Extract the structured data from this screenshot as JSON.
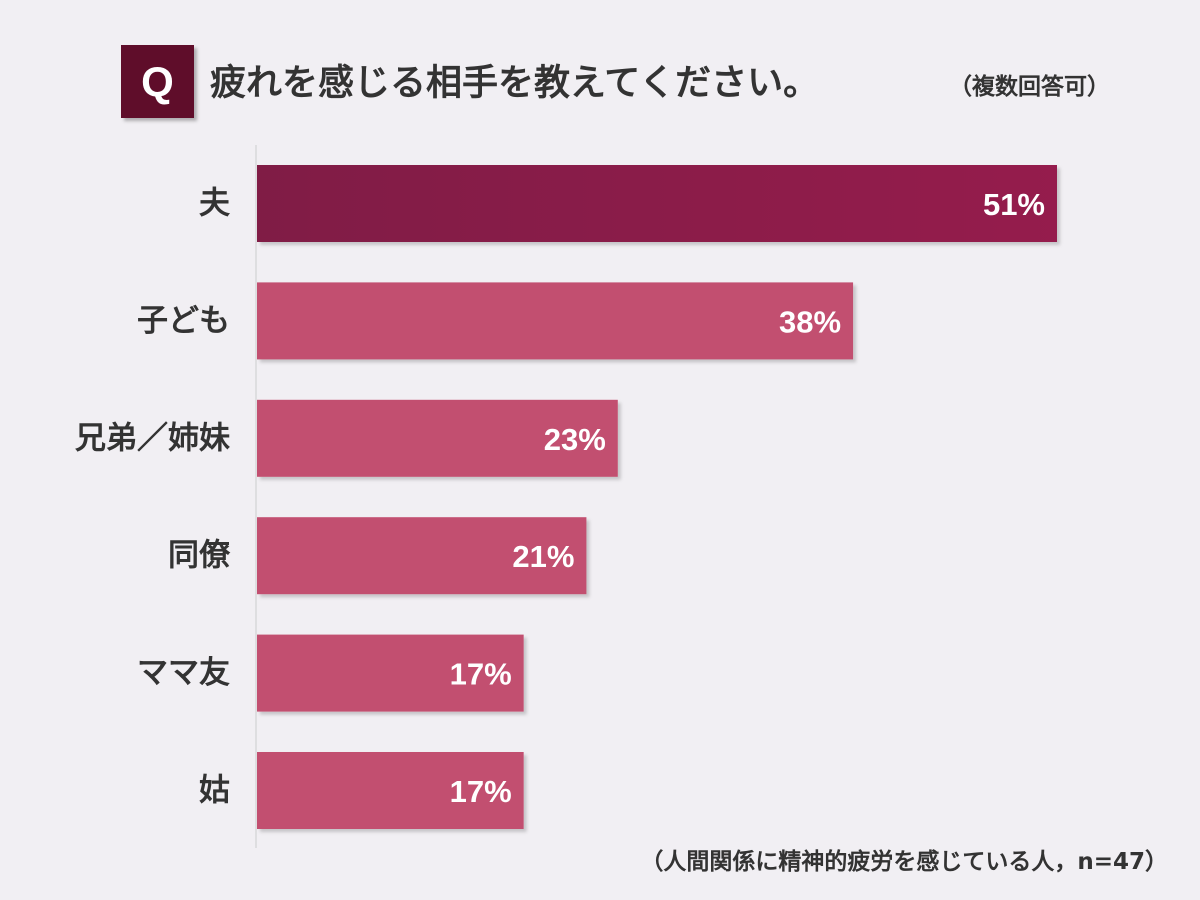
{
  "chart_data": {
    "type": "bar",
    "orientation": "horizontal",
    "question_badge": "Q",
    "title": "疲れを感じる相手を教えてください。",
    "title_note": "（複数回答可）",
    "categories": [
      "夫",
      "子ども",
      "兄弟／姉妹",
      "同僚",
      "ママ友",
      "姑"
    ],
    "values": [
      51,
      38,
      23,
      21,
      17,
      17
    ],
    "value_labels": [
      "51%",
      "38%",
      "23%",
      "21%",
      "17%",
      "17%"
    ],
    "unit": "%",
    "xlim": [
      0,
      100
    ],
    "grid": false,
    "legend": "none",
    "highlight_index": 0,
    "footnote": "（人間関係に精神的疲労を感じている人，n=47）"
  },
  "colors": {
    "background": "#f1eff3",
    "badge": "#5f0f2b",
    "title_text": "#333333",
    "bar_highlight_start": "#801a45",
    "bar_highlight_end": "#951b4d",
    "bar": "#c2506f",
    "bar_label": "#ffffff",
    "category_text": "#333333",
    "axis_line": "#cccccc"
  }
}
